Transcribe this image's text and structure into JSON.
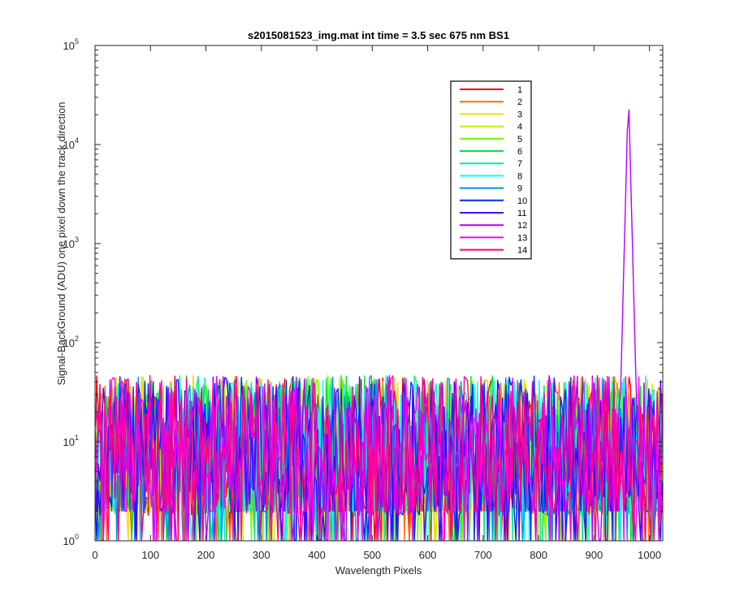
{
  "chart_data": {
    "type": "line",
    "title": "s2015081523_img.mat int time = 3.5 sec  675 nm BS1",
    "xlabel": "Wavelength Pixels",
    "ylabel": "Signal-BackGround (ADU) one pixel down the track direction",
    "xlim": [
      0,
      1024
    ],
    "ylim": [
      1,
      100000
    ],
    "yscale": "log",
    "xticks": [
      0,
      100,
      200,
      300,
      400,
      500,
      600,
      700,
      800,
      900,
      1000
    ],
    "xtick_labels": [
      "0",
      "100",
      "200",
      "300",
      "400",
      "500",
      "600",
      "700",
      "800",
      "900",
      "1000"
    ],
    "yticks": [
      1,
      10,
      100,
      1000,
      10000,
      100000
    ],
    "ytick_labels": [
      {
        "base": "10",
        "exp": "0"
      },
      {
        "base": "10",
        "exp": "1"
      },
      {
        "base": "10",
        "exp": "2"
      },
      {
        "base": "10",
        "exp": "3"
      },
      {
        "base": "10",
        "exp": "4"
      },
      {
        "base": "10",
        "exp": "5"
      }
    ],
    "grid": false,
    "legend_position": "top-right",
    "noise_range": [
      1,
      50
    ],
    "series": [
      {
        "name": "1",
        "color": "#ff0000"
      },
      {
        "name": "2",
        "color": "#ff6d00"
      },
      {
        "name": "3",
        "color": "#ffd700"
      },
      {
        "name": "4",
        "color": "#c8f000"
      },
      {
        "name": "5",
        "color": "#6cff00"
      },
      {
        "name": "6",
        "color": "#00e632"
      },
      {
        "name": "7",
        "color": "#00ee9a"
      },
      {
        "name": "8",
        "color": "#00ffff"
      },
      {
        "name": "9",
        "color": "#0093e0"
      },
      {
        "name": "10",
        "color": "#0028ff"
      },
      {
        "name": "11",
        "color": "#4a00ff"
      },
      {
        "name": "12",
        "color": "#b400ff",
        "peak": {
          "x": 962,
          "y": 37000
        }
      },
      {
        "name": "13",
        "color": "#ff00e6"
      },
      {
        "name": "14",
        "color": "#ff0080"
      }
    ]
  }
}
